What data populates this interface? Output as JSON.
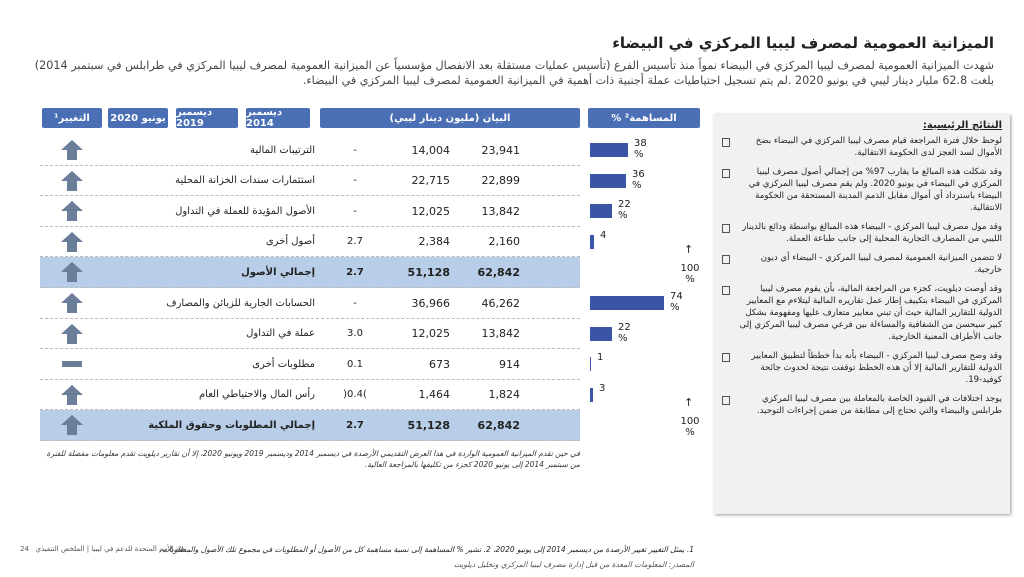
{
  "title": "الميزانية العمومية لمصرف ليبيا المركزي في البيضاء",
  "intro": "شهدت الميزانية العمومية لمصرف ليبيا المركزي في البيضاء نمواً منذ تأسيس الفرع (تأسيس عمليات مستقلة بعد الانفصال مؤسسياً عن الميزانية العمومية لمصرف ليبيا المركزي في طرابلس في سبتمبر 2014) بلغت 62.8 مليار دينار ليبي في يونيو 2020 .لم يتم تسجيل احتياطيات عملة أجنبية ذات أهمية في الميزانية العمومية لمصرف ليبيا المركزي في البيضاء.",
  "table": {
    "headers": {
      "change": "التغيير¹",
      "jun2020": "يونيو 2020",
      "dec2019": "ديسمبر 2019",
      "dec2014": "ديسمبر 2014",
      "item": "البيان (مليون دينار ليبي)",
      "share": "% المساهمة²"
    },
    "rows": [
      {
        "label": "الترتيبات المالية",
        "dec2014": "23,941",
        "dec2019": "14,004",
        "jun2020": "-",
        "share": "38 %"
      },
      {
        "label": "استثمارات سندات الخزانة المحلية",
        "dec2014": "22,899",
        "dec2019": "22,715",
        "jun2020": "-",
        "share": "36 %"
      },
      {
        "label": "الأصول المؤيدة للعملة في التداول",
        "dec2014": "13,842",
        "dec2019": "12,025",
        "jun2020": "-",
        "share": "22 %"
      },
      {
        "label": "أصول أخرى",
        "dec2014": "2,160",
        "dec2019": "2,384",
        "jun2020": "2.7",
        "share": "4"
      },
      {
        "label": "إجمالي الأصول",
        "dec2014": "62,842",
        "dec2019": "51,128",
        "jun2020": "2.7",
        "share": "100 %",
        "total": true
      },
      {
        "label": "الحسابات الجارية للزبائن والمصارف",
        "dec2014": "46,262",
        "dec2019": "36,966",
        "jun2020": "-",
        "share": "74 %"
      },
      {
        "label": "عملة في التداول",
        "dec2014": "13,842",
        "dec2019": "12,025",
        "jun2020": "3.0",
        "share": "22 %"
      },
      {
        "label": "مطلوبات أخرى",
        "dec2014": "914",
        "dec2019": "673",
        "jun2020": "0.1",
        "share": "1",
        "flat": true
      },
      {
        "label": "رأس المال والاحتياطي العام",
        "dec2014": "1,824",
        "dec2019": "1,464",
        "jun2020": ")0.4(",
        "share": "3"
      },
      {
        "label": "إجمالي المطلوبات وحقوق الملكية",
        "dec2014": "62,842",
        "dec2019": "51,128",
        "jun2020": "2.7",
        "share": "100 %",
        "total": true
      }
    ],
    "note": "في حين تقدم الميزانية العمومية الواردة في هذا العرض التقديمي الأرصدة في ديسمبر 2014 وديسمبر 2019 ويونيو 2020، إلا أن تقارير ديلويت تقدم معلومات مفصلة للفترة من سبتمبر 2014 إلى يونيو 2020 كجزء من تكليفها بالمراجعة العالية."
  },
  "findings": {
    "title": "النتائج الرئيسية:",
    "items": [
      "لوحظ خلال فترة المراجعة قيام مصرف ليبيا المركزي في البيضاء بضخ الأموال لسد العجز لدى الحكومة الانتقالية.",
      "وقد شكلت هذه المبالغ ما يقارب 97% من إجمالي أصول مصرف ليبيا المركزي في البيضاء في يونيو 2020. ولم يقم مصرف ليبيا المركزي في البيضاء باسترداد أي أموال مقابل الذمم المدينة المستحقة من الحكومة الانتقالية.",
      "وقد مول مصرف ليبيا المركزي - البيضاء هذه المبالغ بواسطة ودائع بالدينار الليبي من المصارف التجارية المحلية إلى جانب طباعة العملة.",
      "لا تتضمن الميزانية العمومية لمصرف ليبيا المركزي - البيضاء أي ديون خارجية.",
      "وقد أوصت ديلويت، كجزء من المراجعة المالية، بأن يقوم مصرف ليبيا المركزي في البيضاء بتكييف إطار عمل تقاريره المالية ليتلاءم مع المعايير الدولية للتقارير المالية حيث أن تبني معايير متعارف عليها ومفهومة بشكل كبير سيحسن من الشفافية والمساءلة بين فرعي مصرف ليبيا المركزي إلى جانب الأطراف المعنية الخارجية.",
      "وقد وضح مصرف ليبيا المركزي - البيضاء بأنه بدأ خططاً لتطبيق المعايير الدولية للتقارير المالية إلا أن هذه الخطط توقفت نتيجة لحدوث جائحة كوفيد-19.",
      "يوجد اختلافات في القيود الخاصة بالمعاملة بين مصرف ليبيا المركزي طرابلس والبيضاء والتي تحتاج إلى مطابقة من ضمن إجراءات التوحيد."
    ]
  },
  "footnote": "1. يمثل التغيير تغيير الأرصدة من ديسمبر 2014 إلى يونيو 2020، 2. تشير % المساهمة إلى نسبة مساهمة كل من الأصول أو المطلوبات في مجموع تلك الأصول والمطلوبات.",
  "source": "المصدر: المعلومات المعدة من قبل إدارة مصرف ليبيا المركزي وتحليل ديلويت",
  "footer": {
    "text": "بعثة الأمم المتحدة للدعم في ليبيا | الملخص التنفيذي",
    "page": "24"
  }
}
